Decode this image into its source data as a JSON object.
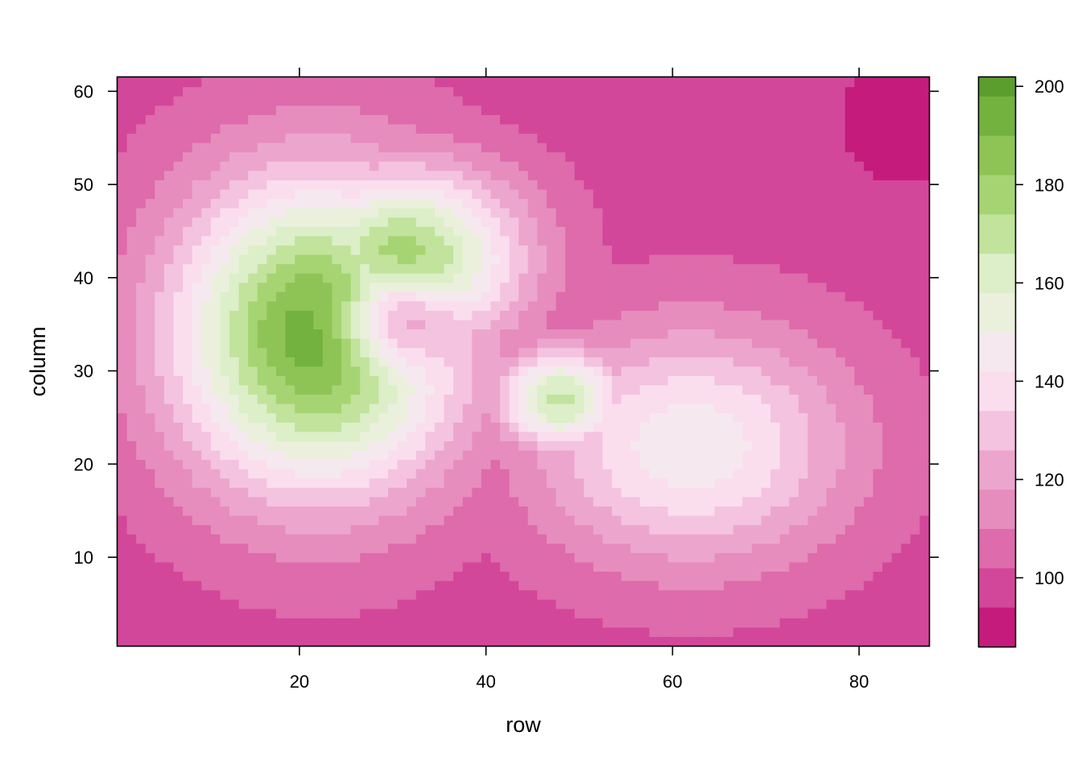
{
  "chart_data": {
    "type": "heatmap",
    "title": "",
    "xlabel": "row",
    "ylabel": "column",
    "xlim": [
      0.5,
      87.5
    ],
    "ylim": [
      0.5,
      61.5
    ],
    "grid_x": [
      1,
      87
    ],
    "grid_y": [
      1,
      61
    ],
    "x_ticks": [
      20,
      40,
      60,
      80
    ],
    "y_ticks": [
      10,
      20,
      30,
      40,
      50,
      60
    ],
    "x_tick_labels": [
      "20",
      "40",
      "60",
      "80"
    ],
    "y_tick_labels": [
      "10",
      "20",
      "30",
      "40",
      "50",
      "60"
    ],
    "grid": false,
    "legend": "right",
    "colorbar": {
      "breaks": [
        86,
        94,
        102,
        110,
        118,
        126,
        134,
        142,
        150,
        158,
        166,
        174,
        182,
        190,
        198,
        202
      ],
      "colors": [
        "#C51B7D",
        "#D3479A",
        "#DE6BAB",
        "#E68DBE",
        "#ECA6CE",
        "#F4C3E0",
        "#FADEEE",
        "#F5E8EE",
        "#EAF0DC",
        "#DCEFC8",
        "#C1E39C",
        "#A6D472",
        "#8EC455",
        "#73B23E",
        "#5B9E2E",
        "#4A8B20"
      ],
      "ticks": [
        100,
        120,
        140,
        160,
        180,
        200
      ],
      "tick_labels": [
        "100",
        "120",
        "140",
        "160",
        "180",
        "200"
      ]
    },
    "surface_description_values": {
      "base": 98,
      "features": [
        {
          "kind": "peak",
          "x": 22,
          "y": 34,
          "value": 196,
          "sx": 11,
          "sy": 12
        },
        {
          "kind": "peak",
          "x": 31,
          "y": 42,
          "value": 180,
          "sx": 9,
          "sy": 7
        },
        {
          "kind": "dip",
          "x": 30,
          "y": 35,
          "value": -42,
          "sx": 4,
          "sy": 3.5
        },
        {
          "kind": "peak",
          "x": 48,
          "y": 27,
          "value": 168,
          "sx": 5,
          "sy": 4
        },
        {
          "kind": "ridge",
          "x": 62,
          "y": 22,
          "value": 148,
          "sx": 12,
          "sy": 9
        },
        {
          "kind": "low",
          "x": 85,
          "y": 57,
          "value": 88,
          "sx": 5,
          "sy": 5
        }
      ]
    }
  }
}
